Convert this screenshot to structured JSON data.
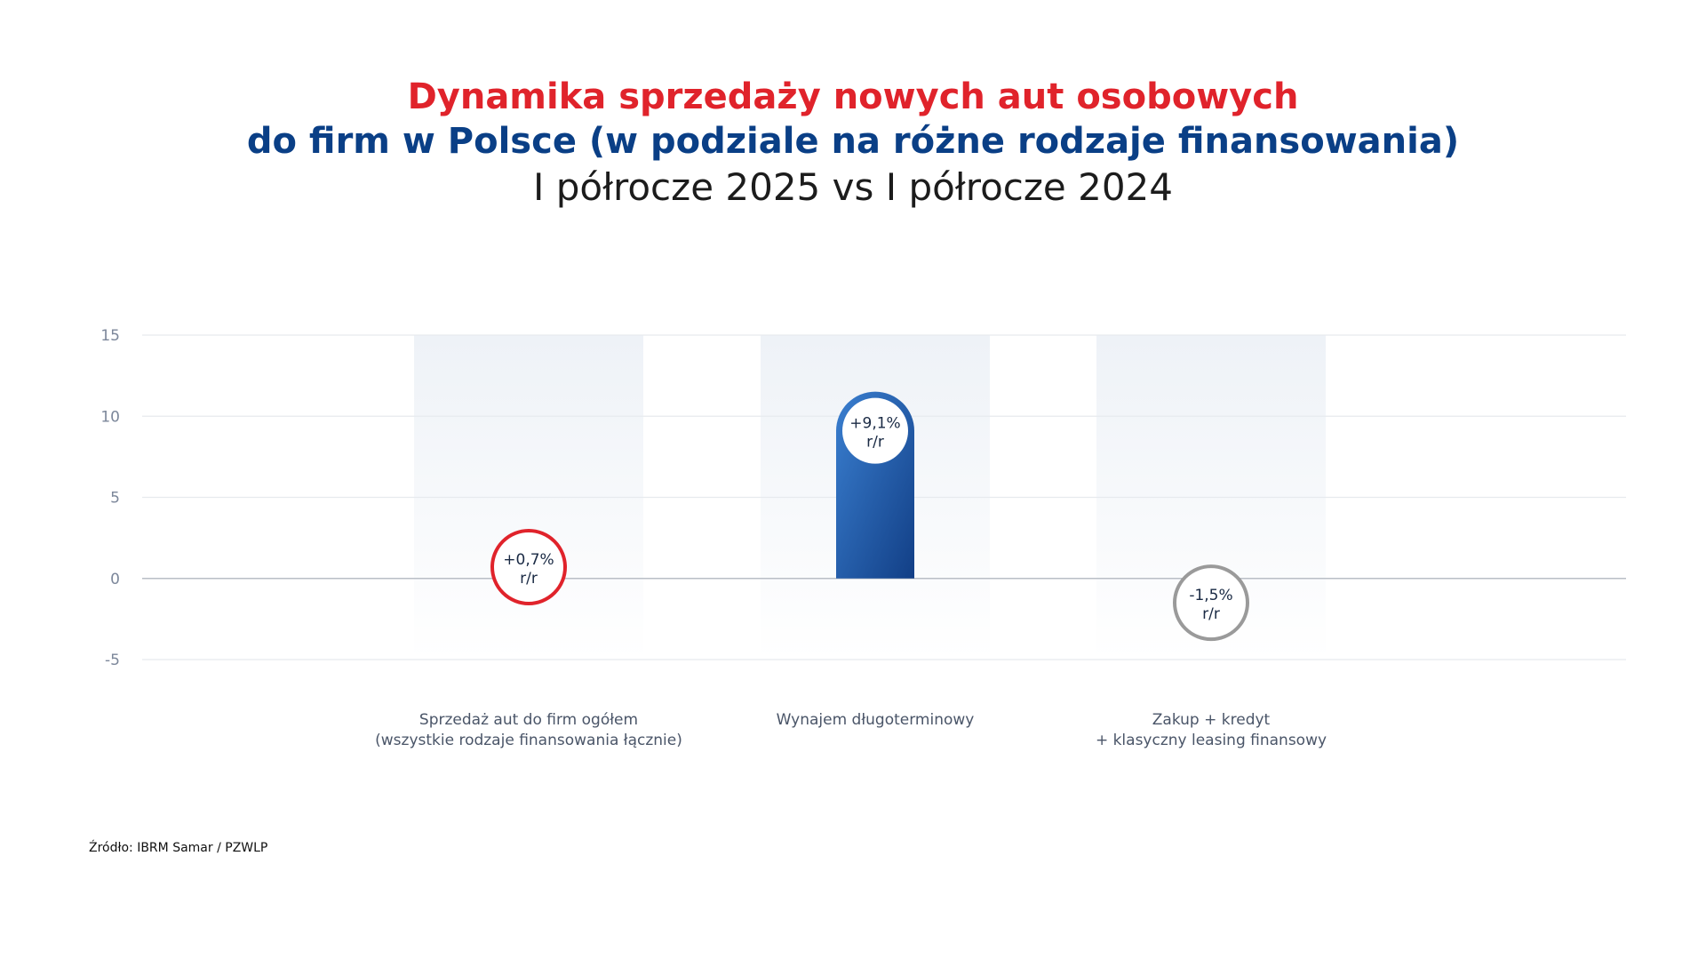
{
  "header": {
    "title_line1": "Dynamika sprzedaży nowych aut osobowych",
    "title_line2": "do firm w Polsce (w podziale na różne rodzaje finansowania)",
    "subtitle": "I półrocze 2025 vs I półrocze 2024"
  },
  "source": "Źródło: IBRM Samar / PZWLP",
  "colors": {
    "accent_red": "#e0232b",
    "accent_blue": "#0a3f86",
    "bar_blue": "#2e6fc2",
    "neutral_gray": "#9a9a9a",
    "axis_text": "#7c879a"
  },
  "chart_data": {
    "type": "bar",
    "ylim": [
      -5,
      15
    ],
    "yticks": [
      15,
      10,
      5,
      0,
      -5
    ],
    "grid": true,
    "categories": [
      [
        "Sprzedaż aut do firm ogółem",
        "(wszystkie rodzaje finansowania łącznie)"
      ],
      [
        "Wynajem długoterminowy"
      ],
      [
        "Zakup + kredyt",
        "+ klasyczny leasing finansowy"
      ]
    ],
    "values": [
      0.7,
      9.1,
      -1.5
    ],
    "value_labels": [
      "+0,7%",
      "+9,1%",
      "-1,5%"
    ],
    "unit_label": "r/r",
    "marker_colors": [
      "#e0232b",
      "#0a3f86",
      "#9a9a9a"
    ]
  }
}
